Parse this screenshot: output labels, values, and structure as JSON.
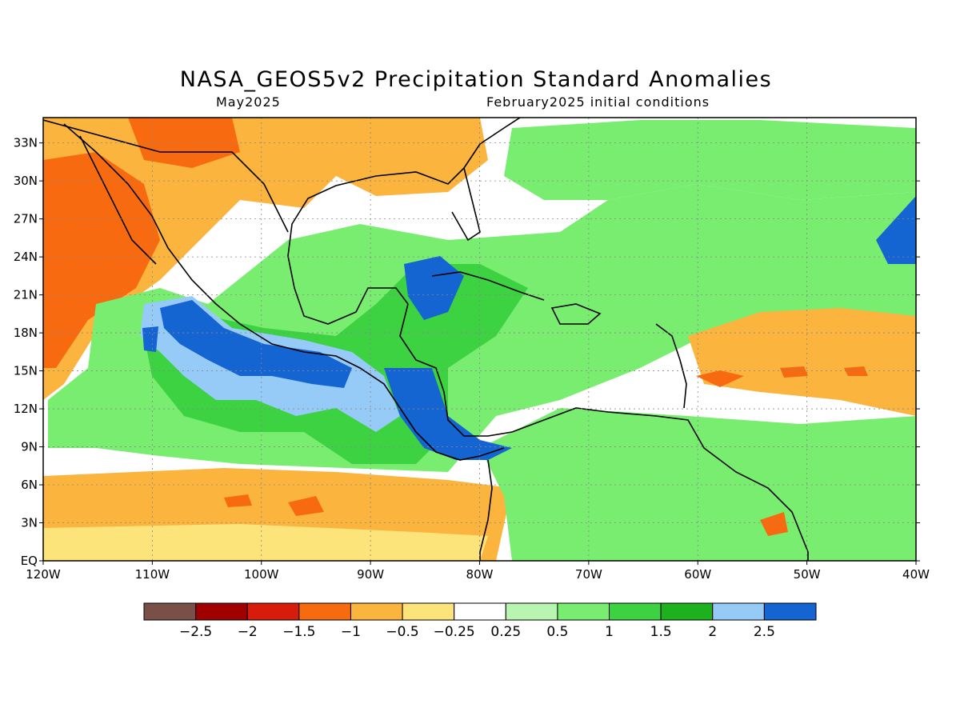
{
  "title": "NASA_GEOS5v2 Precipitation Standard Anomalies",
  "subtitle_left": "May2025",
  "subtitle_right": "February2025 initial conditions",
  "map": {
    "lon_range": [
      -120,
      -40
    ],
    "lat_range": [
      0,
      35
    ],
    "lon_ticks": [
      {
        "value": -120,
        "label": "120W"
      },
      {
        "value": -110,
        "label": "110W"
      },
      {
        "value": -100,
        "label": "100W"
      },
      {
        "value": -90,
        "label": "90W"
      },
      {
        "value": -80,
        "label": "80W"
      },
      {
        "value": -70,
        "label": "70W"
      },
      {
        "value": -60,
        "label": "60W"
      },
      {
        "value": -50,
        "label": "50W"
      },
      {
        "value": -40,
        "label": "40W"
      }
    ],
    "lat_ticks": [
      {
        "value": 0,
        "label": "EQ"
      },
      {
        "value": 3,
        "label": "3N"
      },
      {
        "value": 6,
        "label": "6N"
      },
      {
        "value": 9,
        "label": "9N"
      },
      {
        "value": 12,
        "label": "12N"
      },
      {
        "value": 15,
        "label": "15N"
      },
      {
        "value": 18,
        "label": "18N"
      },
      {
        "value": 21,
        "label": "21N"
      },
      {
        "value": 24,
        "label": "24N"
      },
      {
        "value": 27,
        "label": "27N"
      },
      {
        "value": 30,
        "label": "30N"
      },
      {
        "value": 33,
        "label": "33N"
      }
    ],
    "grid": true
  },
  "legend": {
    "colors": [
      "#7a4f48",
      "#a00000",
      "#d81c0c",
      "#f86a10",
      "#fbb43e",
      "#fde47a",
      "#ffffff",
      "#b8f5b0",
      "#78ed70",
      "#3cd242",
      "#1eb11e",
      "#96cbf8",
      "#1464d2"
    ],
    "labels": [
      "-2.5",
      "-2",
      "-1.5",
      "-1",
      "-0.5",
      "-0.25",
      "0.25",
      "0.5",
      "1",
      "1.5",
      "2",
      "2.5"
    ]
  },
  "colors": {
    "background": "#ffffff",
    "dry": "#fbb43e",
    "very_dry": "#f86a10",
    "wet": "#78ed70",
    "very_wet": "#1464d2",
    "coastline": "#000000"
  }
}
